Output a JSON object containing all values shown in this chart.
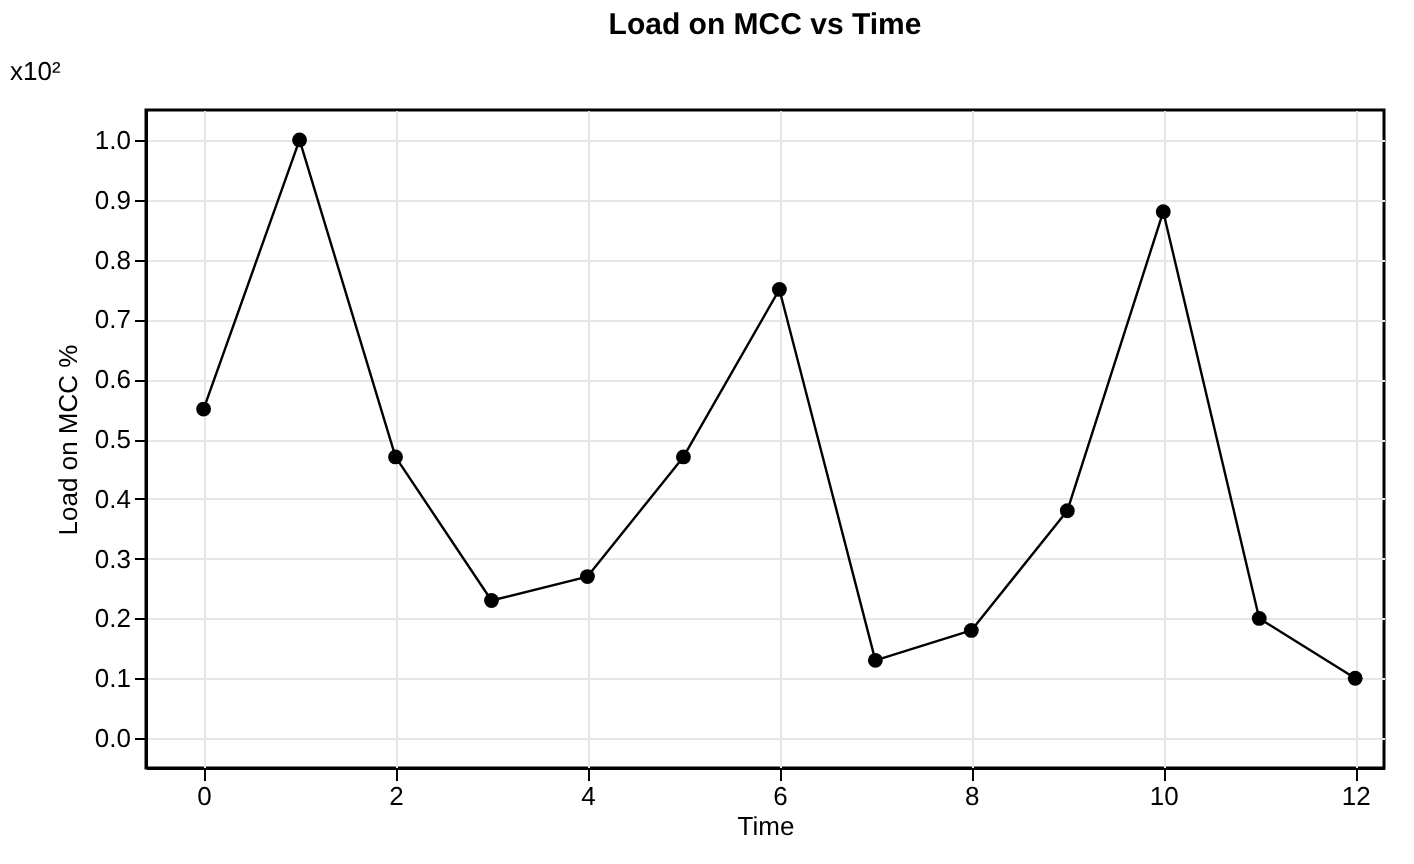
{
  "chart_data": {
    "type": "line",
    "title": "Load on MCC vs Time",
    "xlabel": "Time",
    "ylabel": "Load on MCC %",
    "annotations": [
      "x10²"
    ],
    "x": [
      0,
      1,
      2,
      3,
      4,
      5,
      6,
      7,
      8,
      9,
      10,
      11,
      12
    ],
    "series": [
      {
        "color": "#000000",
        "values": [
          0.55,
          1.0,
          0.47,
          0.23,
          0.27,
          0.47,
          0.75,
          0.13,
          0.18,
          0.38,
          0.88,
          0.2,
          0.1
        ]
      }
    ],
    "xlim": [
      -0.6,
      12.3
    ],
    "xticks": [
      0,
      2,
      4,
      6,
      8,
      10,
      12
    ],
    "ylim": [
      -0.05,
      1.05
    ],
    "yticks": [
      {
        "value": 0,
        "label": "0.0"
      },
      0.1,
      0.2,
      0.3,
      0.4,
      0.5,
      0.6,
      0.7,
      0.8,
      0.9,
      {
        "value": 1,
        "label": "1.0"
      }
    ],
    "grid": true,
    "marker": "circle",
    "line_style": "solid"
  }
}
